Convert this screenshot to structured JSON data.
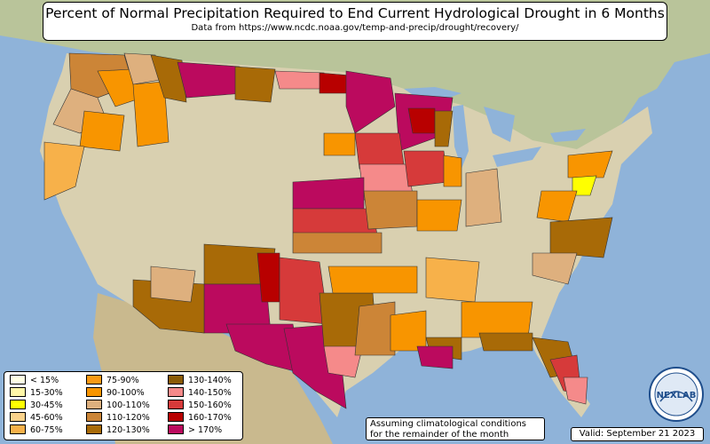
{
  "title": "Percent of Normal Precipitation Required to End Current Hydrological Drought in 6 Months",
  "subtitle": "Data from https://www.ncdc.noaa.gov/temp-and-precip/drought/recovery/",
  "legend": {
    "items": [
      {
        "label": "< 15%",
        "color": "#ffffe5"
      },
      {
        "label": "15-30%",
        "color": "#fff7a8"
      },
      {
        "label": "30-45%",
        "color": "#ffff00"
      },
      {
        "label": "45-60%",
        "color": "#fbd38b"
      },
      {
        "label": "60-75%",
        "color": "#f7b14a"
      },
      {
        "label": "75-90%",
        "color": "#fa9a15"
      },
      {
        "label": "90-100%",
        "color": "#f89500"
      },
      {
        "label": "100-110%",
        "color": "#deb07e"
      },
      {
        "label": "110-120%",
        "color": "#cc8537"
      },
      {
        "label": "120-130%",
        "color": "#a86a07"
      },
      {
        "label": "130-140%",
        "color": "#8a5b06"
      },
      {
        "label": "140-150%",
        "color": "#f58a8a"
      },
      {
        "label": "150-160%",
        "color": "#d63a3a"
      },
      {
        "label": "160-170%",
        "color": "#b80000"
      },
      {
        "label": "> 170%",
        "color": "#bb0a5e"
      }
    ]
  },
  "note": {
    "line1": "Assuming climatological conditions",
    "line2": "for the remainder of the month"
  },
  "valid": "Valid: September 21 2023",
  "logo_text": "NEXLAB",
  "colors": {
    "ocean": "#8fb3d9",
    "land": "#d9d0b0",
    "land_green": "#a9c08a"
  }
}
